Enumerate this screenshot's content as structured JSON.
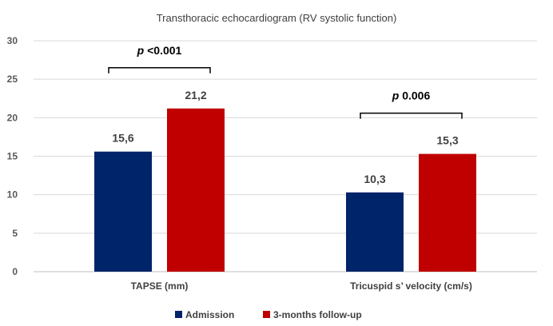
{
  "chart_data": {
    "type": "bar",
    "title": "Transthoracic echocardiogram (RV systolic function)",
    "categories": [
      "TAPSE (mm)",
      "Tricuspid s’ velocity (cm/s)"
    ],
    "series": [
      {
        "name": "Admission",
        "values": [
          15.6,
          10.3
        ],
        "labels": [
          "15,6",
          "10,3"
        ],
        "color": "#002469"
      },
      {
        "name": "3-months follow-up",
        "values": [
          21.2,
          15.3
        ],
        "labels": [
          "21,2",
          "15,3"
        ],
        "color": "#C00000"
      }
    ],
    "ylim": [
      0,
      30
    ],
    "yticks": [
      0,
      5,
      10,
      15,
      20,
      25,
      30
    ],
    "grid": true,
    "legend": "bottom",
    "annotations": [
      {
        "category": 0,
        "text_p": "p",
        "text_rest": " <0.001"
      },
      {
        "category": 1,
        "text_p": "p",
        "text_rest": " 0.006"
      }
    ]
  }
}
